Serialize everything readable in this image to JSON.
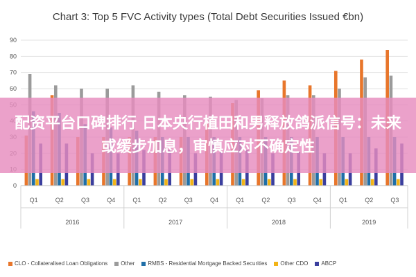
{
  "chart_data": {
    "type": "bar",
    "title": "Chart 3: Top 5 FVC Activity types (Total Debt Securities Issued €bn)",
    "categories": [
      "Q1",
      "Q2",
      "Q3",
      "Q4",
      "Q1",
      "Q2",
      "Q3",
      "Q4",
      "Q1",
      "Q2",
      "Q3",
      "Q4",
      "Q1",
      "Q2",
      "Q3"
    ],
    "years": [
      {
        "label": "2016",
        "start": 0,
        "count": 4
      },
      {
        "label": "2017",
        "start": 4,
        "count": 4
      },
      {
        "label": "2018",
        "start": 8,
        "count": 4
      },
      {
        "label": "2019",
        "start": 12,
        "count": 3
      }
    ],
    "ylim": [
      0,
      90
    ],
    "yticks": [
      0,
      10,
      20,
      30,
      40,
      50,
      60,
      70,
      80,
      90
    ],
    "grid": true,
    "legend_position": "bottom",
    "series": [
      {
        "name": "CLO - Collateralised Loan Obligations",
        "color": "#e8762b",
        "values": [
          31,
          56,
          30,
          30,
          30,
          30,
          30,
          40,
          51,
          59,
          65,
          62,
          71,
          78,
          84
        ]
      },
      {
        "name": "Other",
        "color": "#9b9b9b",
        "values": [
          69,
          62,
          60,
          60,
          62,
          58,
          56,
          55,
          53,
          54,
          56,
          56,
          60,
          67,
          68
        ]
      },
      {
        "name": "RMBS - Residential Mortgage Backed Securities",
        "color": "#1f6fa8",
        "values": [
          46,
          45,
          38,
          36,
          34,
          30,
          30,
          30,
          30,
          30,
          30,
          30,
          30,
          30,
          30
        ]
      },
      {
        "name": "Other CDO",
        "color": "#f2b417",
        "values": [
          4,
          4,
          4,
          4,
          4,
          4,
          4,
          4,
          4,
          4,
          4,
          4,
          4,
          4,
          4
        ]
      },
      {
        "name": "ABCP",
        "color": "#3b3f9e",
        "values": [
          26,
          26,
          20,
          20,
          22,
          22,
          20,
          21,
          22,
          20,
          21,
          20,
          20,
          23,
          26
        ]
      }
    ]
  },
  "banner": {
    "text": "配资平台口碑排行 日本央行植田和男释放鸽派信号：未来或缓步加息，审慎应对不确定性"
  }
}
